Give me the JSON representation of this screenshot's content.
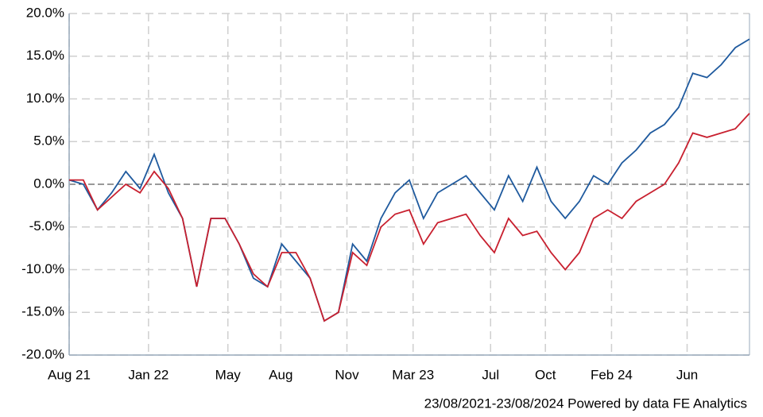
{
  "chart_data": {
    "type": "line",
    "x": [
      0,
      0.75,
      1.5,
      2.25,
      3,
      3.75,
      4.5,
      5.25,
      6,
      6.75,
      7.5,
      8.25,
      9,
      9.75,
      10.5,
      11.25,
      12,
      12.75,
      13.5,
      14.25,
      15,
      15.75,
      16.5,
      17.25,
      18,
      18.75,
      19.5,
      20.25,
      21,
      21.75,
      22.5,
      23.25,
      24,
      24.75,
      25.5,
      26.25,
      27,
      27.75,
      28.5,
      29.25,
      30,
      30.75,
      31.5,
      32.25,
      33,
      33.75,
      34.5,
      35.25,
      36
    ],
    "series": [
      {
        "color": "#1f5a9e",
        "values": [
          0.5,
          0,
          -3,
          -1,
          1.5,
          -0.5,
          3.5,
          -1,
          -4,
          -12,
          -4,
          -4,
          -7,
          -11,
          -12,
          -7,
          -9,
          -11,
          -16,
          -15,
          -7,
          -9,
          -4,
          -1,
          0.5,
          -4,
          -1,
          0,
          1,
          -1,
          -3,
          1,
          -2,
          2,
          -2,
          -4,
          -2,
          1,
          0,
          2.5,
          4,
          6,
          7,
          9,
          13,
          12.5,
          14,
          16,
          17
        ]
      },
      {
        "color": "#c8202f",
        "values": [
          0.5,
          0.5,
          -3,
          -1.5,
          0,
          -1,
          1.5,
          -0.5,
          -4,
          -12,
          -4,
          -4,
          -7,
          -10.5,
          -12,
          -8,
          -8,
          -11,
          -16,
          -15,
          -8,
          -9.5,
          -5,
          -3.5,
          -3,
          -7,
          -4.5,
          -4,
          -3.5,
          -6,
          -8,
          -4,
          -6,
          -5.5,
          -8,
          -10,
          -8,
          -4,
          -3,
          -4,
          -2,
          -1,
          0,
          2.5,
          6,
          5.5,
          6,
          6.5,
          8.3
        ]
      }
    ],
    "xlim": [
      0,
      36
    ],
    "xticks": [
      {
        "value": 0,
        "label": "Aug 21"
      },
      {
        "value": 4.2,
        "label": "Jan 22"
      },
      {
        "value": 8.4,
        "label": "May"
      },
      {
        "value": 11.2,
        "label": "Aug"
      },
      {
        "value": 14.7,
        "label": "Nov"
      },
      {
        "value": 18.2,
        "label": "Mar 23"
      },
      {
        "value": 22.3,
        "label": "Jul"
      },
      {
        "value": 25.2,
        "label": "Oct"
      },
      {
        "value": 28.7,
        "label": "Feb 24"
      },
      {
        "value": 32.7,
        "label": "Jun"
      }
    ],
    "ylim": [
      -20,
      20
    ],
    "yticks": [
      {
        "value": -20,
        "label": "-20.0%"
      },
      {
        "value": -15,
        "label": "-15.0%"
      },
      {
        "value": -10,
        "label": "-10.0%"
      },
      {
        "value": -5,
        "label": "-5.0%"
      },
      {
        "value": 0,
        "label": "0.0%"
      },
      {
        "value": 5,
        "label": "5.0%"
      },
      {
        "value": 10,
        "label": "10.0%"
      },
      {
        "value": 15,
        "label": "15.0%"
      },
      {
        "value": 20,
        "label": "20.0%"
      }
    ],
    "grid": true,
    "footer": "23/08/2021-23/08/2024 Powered by data FE Analytics"
  }
}
